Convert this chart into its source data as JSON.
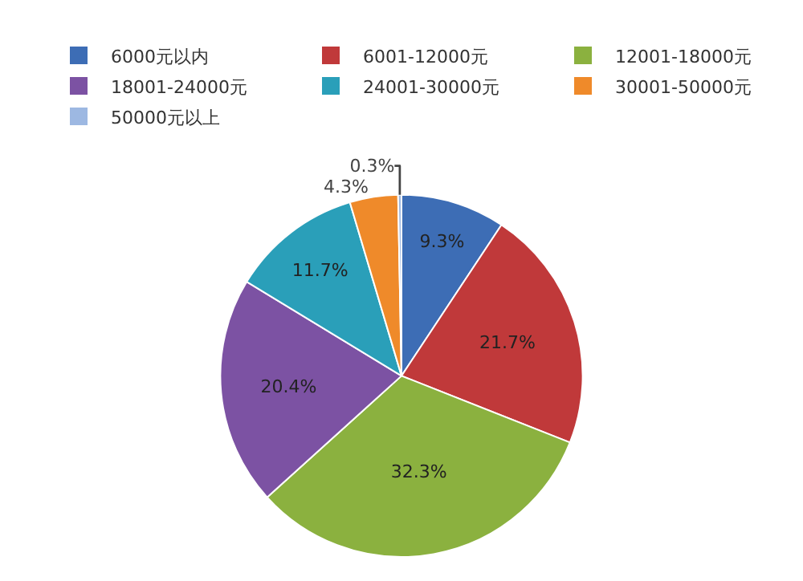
{
  "chart_data": {
    "type": "pie",
    "categories": [
      "6000元以内",
      "6001-12000元",
      "12001-18000元",
      "18001-24000元",
      "24001-30000元",
      "30001-50000元",
      "50000元以上"
    ],
    "values": [
      9.3,
      21.7,
      32.3,
      20.4,
      11.7,
      4.3,
      0.3
    ],
    "value_labels": [
      "9.3%",
      "21.7%",
      "32.3%",
      "20.4%",
      "11.7%",
      "4.3%",
      "0.3%"
    ],
    "colors": [
      "#3d6db5",
      "#c0393a",
      "#8bb13f",
      "#7c52a3",
      "#2a9fb9",
      "#ef8a2a",
      "#9db8e2"
    ],
    "legend": "top"
  }
}
